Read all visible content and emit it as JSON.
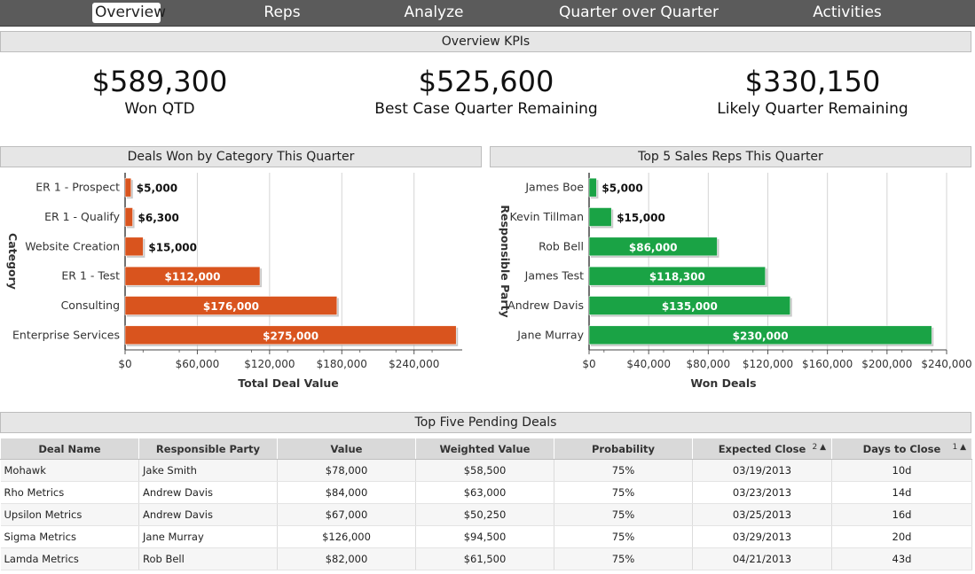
{
  "nav": {
    "tabs": [
      {
        "label": "Overview",
        "active": true
      },
      {
        "label": "Reps",
        "active": false
      },
      {
        "label": "Analyze",
        "active": false
      },
      {
        "label": "Quarter over Quarter",
        "active": false
      },
      {
        "label": "Activities",
        "active": false
      }
    ]
  },
  "kpi_section": {
    "title": "Overview KPIs",
    "items": [
      {
        "value": "$589,300",
        "label": "Won QTD"
      },
      {
        "value": "$525,600",
        "label": "Best Case Quarter Remaining"
      },
      {
        "value": "$330,150",
        "label": "Likely Quarter Remaining"
      }
    ]
  },
  "chart_data": [
    {
      "type": "bar",
      "orientation": "horizontal",
      "title": "Deals Won by Category This Quarter",
      "xlabel": "Total Deal Value",
      "ylabel": "Category",
      "categories": [
        "ER 1 - Prospect",
        "ER 1 - Qualify",
        "Website Creation",
        "ER 1 - Test",
        "Consulting",
        "Enterprise Services"
      ],
      "values": [
        5000,
        6300,
        15000,
        112000,
        176000,
        275000
      ],
      "value_labels": [
        "$5,000",
        "$6,300",
        "$15,000",
        "$112,000",
        "$176,000",
        "$275,000"
      ],
      "ticks": [
        "$0",
        "$60,000",
        "$120,000",
        "$180,000",
        "$240,000"
      ],
      "xlim": [
        0,
        280000
      ],
      "grid": true,
      "color": "#d9541e"
    },
    {
      "type": "bar",
      "orientation": "horizontal",
      "title": "Top 5 Sales Reps This Quarter",
      "xlabel": "Won Deals",
      "ylabel": "Responsible Party",
      "categories": [
        "James Boe",
        "Kevin Tillman",
        "Rob Bell",
        "James Test",
        "Andrew Davis",
        "Jane Murray"
      ],
      "values": [
        5000,
        15000,
        86000,
        118300,
        135000,
        230000
      ],
      "value_labels": [
        "$5,000",
        "$15,000",
        "$86,000",
        "$118,300",
        "$135,000",
        "$230,000"
      ],
      "ticks": [
        "$0",
        "$40,000",
        "$80,000",
        "$120,000",
        "$160,000",
        "$200,000",
        "$240,000"
      ],
      "xlim": [
        0,
        240000
      ],
      "grid": true,
      "color": "#1aa345"
    }
  ],
  "pending": {
    "title": "Top Five Pending Deals",
    "columns": [
      "Deal Name",
      "Responsible Party",
      "Value",
      "Weighted Value",
      "Probability",
      "Expected Close",
      "Days to Close"
    ],
    "sort": {
      "expected_close": "2 ▲",
      "days_to_close": "1 ▲"
    },
    "rows": [
      [
        "Mohawk",
        "Jake Smith",
        "$78,000",
        "$58,500",
        "75%",
        "03/19/2013",
        "10d"
      ],
      [
        "Rho Metrics",
        "Andrew Davis",
        "$84,000",
        "$63,000",
        "75%",
        "03/23/2013",
        "14d"
      ],
      [
        "Upsilon Metrics",
        "Andrew Davis",
        "$67,000",
        "$50,250",
        "75%",
        "03/25/2013",
        "16d"
      ],
      [
        "Sigma Metrics",
        "Jane Murray",
        "$126,000",
        "$94,500",
        "75%",
        "03/29/2013",
        "20d"
      ],
      [
        "Lamda Metrics",
        "Rob Bell",
        "$82,000",
        "$61,500",
        "75%",
        "04/21/2013",
        "43d"
      ]
    ]
  }
}
